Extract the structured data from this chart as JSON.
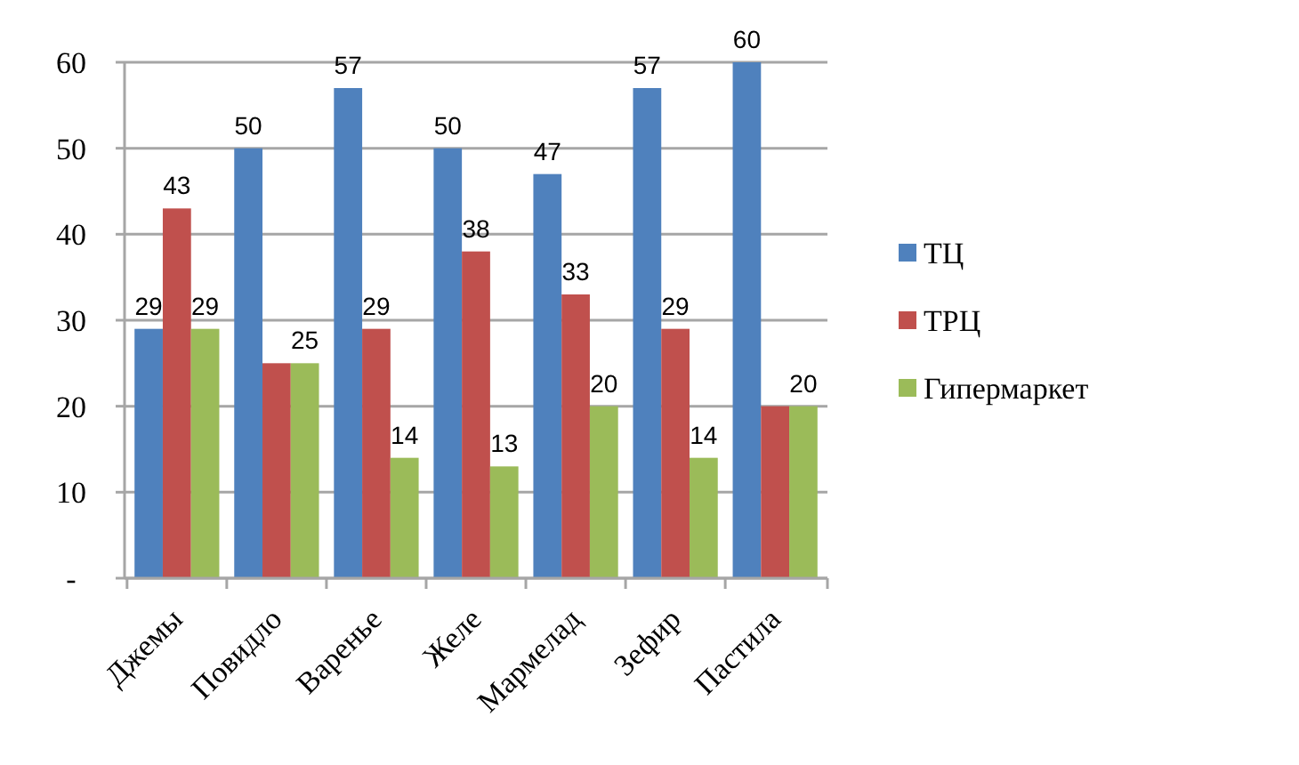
{
  "chart_data": {
    "type": "bar",
    "categories": [
      "Джемы",
      "Повидло",
      "Варенье",
      "Желе",
      "Мармелад",
      "Зефир",
      "Пастила"
    ],
    "series": [
      {
        "name": "ТЦ",
        "color": "#4f81bd",
        "values": [
          29,
          50,
          57,
          50,
          47,
          57,
          60
        ],
        "value_labels": [
          "29",
          "50",
          "57",
          "50",
          "47",
          "57",
          "60"
        ]
      },
      {
        "name": "ТРЦ",
        "color": "#c0504d",
        "values": [
          43,
          25,
          29,
          38,
          33,
          29,
          20
        ],
        "value_labels": [
          "43",
          null,
          "29",
          "38",
          "33",
          "29",
          null
        ]
      },
      {
        "name": "Гипермаркет",
        "color": "#9bbb59",
        "values": [
          29,
          25,
          14,
          13,
          20,
          14,
          20
        ],
        "value_labels": [
          "29",
          "25",
          "14",
          "13",
          "20",
          "14",
          "20"
        ]
      }
    ],
    "ylim": [
      0,
      60
    ],
    "yticks": [
      {
        "value": 0,
        "label": "-"
      },
      10,
      20,
      30,
      40,
      50,
      60
    ],
    "grid": "y",
    "legend": "right"
  }
}
